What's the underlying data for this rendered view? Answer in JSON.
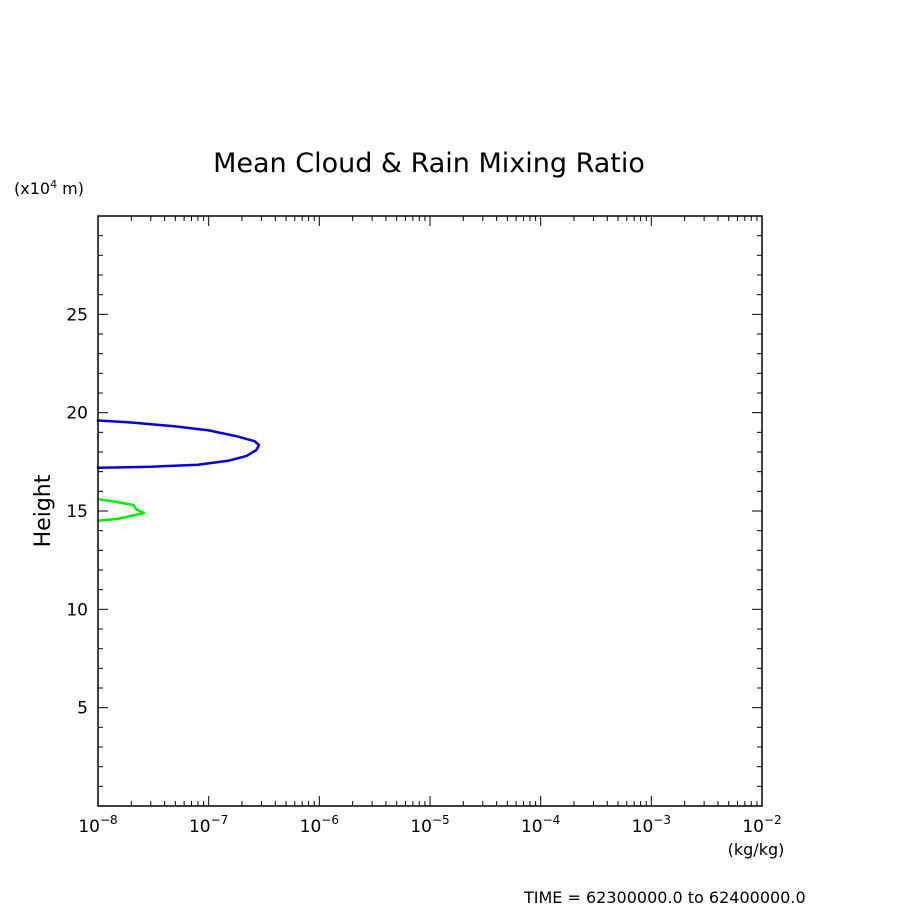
{
  "chart_data": {
    "type": "line",
    "title": "Mean Cloud & Rain Mixing Ratio",
    "xlabel": "(kg/kg)",
    "ylabel": "Height",
    "yunit_base": "(x10",
    "yunit_exp": "4",
    "yunit_tail": " m)",
    "footer": "TIME = 62300000.0 to 62400000.0",
    "x_scale": "log",
    "xlim": [
      1e-08,
      0.01
    ],
    "ylim": [
      0,
      30
    ],
    "x_ticks": [
      {
        "base": "10",
        "exp": "−8",
        "value": 1e-08
      },
      {
        "base": "10",
        "exp": "−7",
        "value": 1e-07
      },
      {
        "base": "10",
        "exp": "−6",
        "value": 1e-06
      },
      {
        "base": "10",
        "exp": "−5",
        "value": 1e-05
      },
      {
        "base": "10",
        "exp": "−4",
        "value": 0.0001
      },
      {
        "base": "10",
        "exp": "−3",
        "value": 0.001
      },
      {
        "base": "10",
        "exp": "−2",
        "value": 0.01
      }
    ],
    "y_ticks": [
      {
        "label": "5",
        "value": 5
      },
      {
        "label": "10",
        "value": 10
      },
      {
        "label": "15",
        "value": 15
      },
      {
        "label": "20",
        "value": 20
      },
      {
        "label": "25",
        "value": 25
      }
    ],
    "grid": false,
    "series": [
      {
        "color": "#0000dd",
        "points": [
          [
            1e-08,
            19.6
          ],
          [
            2e-08,
            19.5
          ],
          [
            5e-08,
            19.3
          ],
          [
            1e-07,
            19.1
          ],
          [
            1.8e-07,
            18.8
          ],
          [
            2.6e-07,
            18.55
          ],
          [
            2.85e-07,
            18.35
          ],
          [
            2.7e-07,
            18.1
          ],
          [
            2.2e-07,
            17.8
          ],
          [
            1.5e-07,
            17.55
          ],
          [
            8e-08,
            17.35
          ],
          [
            3e-08,
            17.25
          ],
          [
            1e-08,
            17.2
          ]
        ]
      },
      {
        "color": "#00ee00",
        "points": [
          [
            1e-08,
            15.6
          ],
          [
            1.5e-08,
            15.45
          ],
          [
            2.1e-08,
            15.3
          ],
          [
            2.2e-08,
            15.1
          ],
          [
            2.6e-08,
            14.9
          ],
          [
            2e-08,
            14.75
          ],
          [
            1.5e-08,
            14.6
          ],
          [
            1e-08,
            14.5
          ]
        ]
      }
    ]
  }
}
